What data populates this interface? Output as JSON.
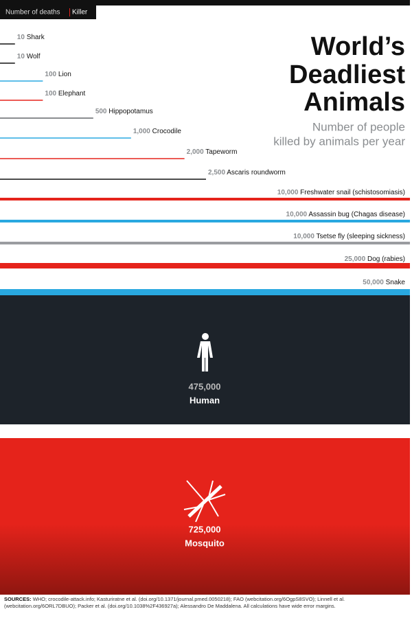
{
  "chart_data": {
    "type": "bar",
    "orientation": "horizontal",
    "legend_tag": [
      "Number of deaths",
      "Killer"
    ],
    "title_lines": [
      "World’s",
      "Deadliest",
      "Animals"
    ],
    "subtitle_lines": [
      "Number of people",
      "killed by animals per year"
    ],
    "categories": [
      "Shark",
      "Wolf",
      "Lion",
      "Elephant",
      "Hippopotamus",
      "Crocodile",
      "Tapeworm",
      "Ascaris roundworm",
      "Freshwater snail (schistosomiasis)",
      "Assassin bug (Chagas disease)",
      "Tsetse fly (sleeping sickness)",
      "Dog (rabies)",
      "Snake"
    ],
    "values": [
      10,
      10,
      100,
      100,
      500,
      1000,
      2000,
      2500,
      10000,
      10000,
      10000,
      25000,
      50000
    ],
    "value_labels": [
      "10",
      "10",
      "100",
      "100",
      "500",
      "1,000",
      "2,000",
      "2,500",
      "10,000",
      "10,000",
      "10,000",
      "25,000",
      "50,000"
    ],
    "colors": [
      "#111111",
      "#111111",
      "#29a8e0",
      "#e5231b",
      "#8a8d90",
      "#29a8e0",
      "#e5231b",
      "#111111",
      "#e5231b",
      "#29a8e0",
      "#9a9ca0",
      "#e5231b",
      "#29a8e0"
    ],
    "xlim": [
      0,
      10000
    ],
    "scale": "sqrt",
    "highlights": [
      {
        "name": "Human",
        "value": 475000,
        "value_label": "475,000",
        "color": "#1d232a"
      },
      {
        "name": "Mosquito",
        "value": 725000,
        "value_label": "725,000",
        "color": "#e5231b"
      }
    ],
    "sources_label": "SOURCES:",
    "sources": "WHO; crocodile-attack.info; Kasturiratne et al. (doi.org/10.1371/journal.pmed.0050218); FAO (webcitation.org/6OgpS8SVO); Linnell et al. (webcitation.org/6ORL7DBUO); Packer et al. (doi.org/10.1038%2F436927a); Alessandro De Maddalena. All calculations have wide error margins."
  }
}
